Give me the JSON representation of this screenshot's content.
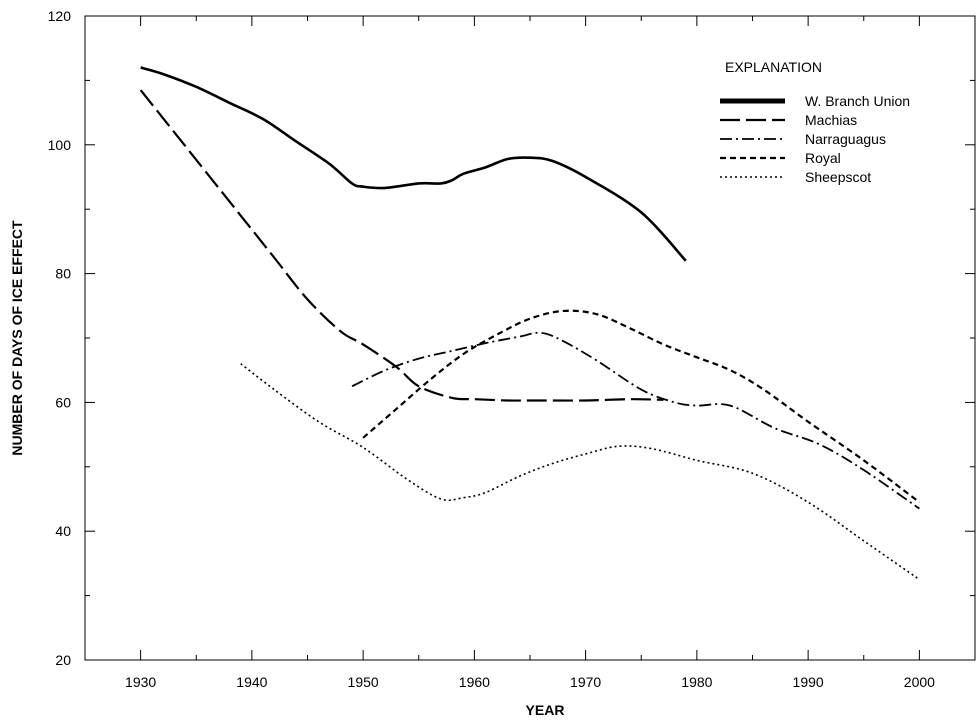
{
  "chart_data": {
    "type": "line",
    "title": "",
    "xlabel": "YEAR",
    "ylabel": "NUMBER OF DAYS OF ICE EFFECT",
    "xlim": [
      1925,
      2005
    ],
    "ylim": [
      20,
      120
    ],
    "xticks": [
      1930,
      1940,
      1950,
      1960,
      1970,
      1980,
      1990,
      2000
    ],
    "yticks": [
      20,
      40,
      60,
      80,
      100,
      120
    ],
    "grid": false,
    "legend_title": "EXPLANATION",
    "legend_position": "top-right",
    "series": [
      {
        "name": "W. Branch Union",
        "style": "solid-thick",
        "x": [
          1930,
          1932,
          1935,
          1938,
          1941,
          1944,
          1947,
          1949,
          1950,
          1952,
          1955,
          1957,
          1958,
          1959,
          1961,
          1963,
          1965,
          1967,
          1970,
          1975,
          1979
        ],
        "y": [
          112,
          111,
          109,
          106.5,
          104,
          100.5,
          97,
          94,
          93.5,
          93.3,
          94,
          94,
          94.5,
          95.5,
          96.5,
          97.8,
          98,
          97.5,
          95,
          89.5,
          82
        ]
      },
      {
        "name": "Machias",
        "style": "long-dash",
        "x": [
          1930,
          1933,
          1936,
          1939,
          1942,
          1945,
          1948,
          1950,
          1953,
          1955,
          1958,
          1960,
          1963,
          1966,
          1970,
          1974,
          1977
        ],
        "y": [
          108.5,
          102,
          95.5,
          89,
          82.5,
          76,
          71,
          69,
          65.5,
          62.5,
          60.7,
          60.5,
          60.3,
          60.3,
          60.3,
          60.5,
          60.4
        ]
      },
      {
        "name": "Narraguagus",
        "style": "dash-dot",
        "x": [
          1949,
          1952,
          1955,
          1958,
          1961,
          1964,
          1966,
          1968,
          1971,
          1975,
          1978,
          1980,
          1983,
          1987,
          1991,
          1995,
          2000
        ],
        "y": [
          62.5,
          65,
          66.8,
          68,
          69.2,
          70.2,
          70.8,
          69.5,
          66.5,
          62,
          60,
          59.5,
          59.5,
          56,
          53.5,
          49.5,
          43.5
        ]
      },
      {
        "name": "Royal",
        "style": "short-dash",
        "x": [
          1950,
          1953,
          1956,
          1959,
          1962,
          1965,
          1968,
          1971,
          1974,
          1977,
          1980,
          1983,
          1986,
          1990,
          1995,
          2000
        ],
        "y": [
          54.5,
          59,
          63.5,
          67.5,
          70.5,
          73,
          74.2,
          73.7,
          71.5,
          69,
          67,
          65,
          62,
          57,
          51,
          44.5
        ]
      },
      {
        "name": "Sheepscot",
        "style": "dotted",
        "x": [
          1939,
          1942,
          1946,
          1950,
          1954,
          1957,
          1959,
          1961,
          1964,
          1967,
          1970,
          1973,
          1976,
          1980,
          1985,
          1990,
          1995,
          2000
        ],
        "y": [
          66,
          62,
          57,
          53,
          48,
          45,
          45.2,
          46,
          48.5,
          50.5,
          52,
          53.2,
          52.8,
          51,
          49,
          44.5,
          38.5,
          32.5
        ]
      }
    ]
  }
}
